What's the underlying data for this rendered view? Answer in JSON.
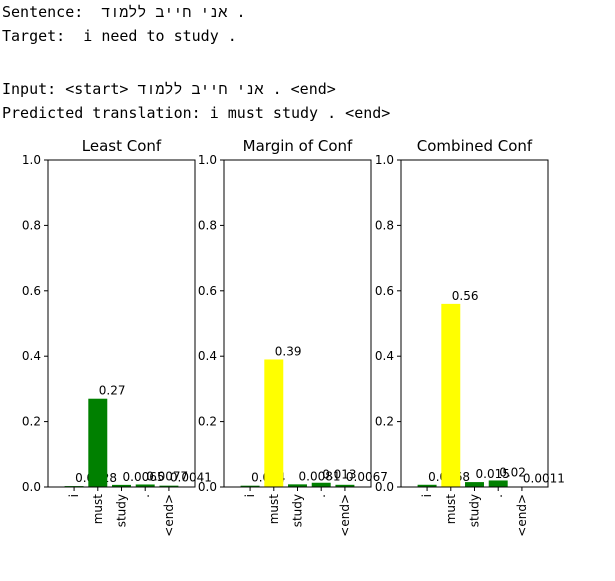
{
  "output": {
    "lines": [
      "Sentence:  אני חייב ללמוד .",
      "Target:  i need to study .",
      "Input: <start> אני חייב ללמוד . <end>",
      "Predicted translation: i must study . <end>"
    ]
  },
  "chart_data": [
    {
      "type": "bar",
      "title": "Least Conf",
      "categories": [
        "i",
        "must",
        "study",
        ".",
        "<end>"
      ],
      "values": [
        0.0028,
        0.27,
        0.0065,
        0.0077,
        0.0041
      ],
      "colors": [
        "green",
        "green",
        "green",
        "green",
        "green"
      ],
      "ylim": [
        0,
        1
      ],
      "yticks": [
        {
          "value": 0,
          "label": "0.0"
        },
        0.2,
        0.4,
        0.6,
        0.8,
        {
          "value": 1,
          "label": "1.0"
        }
      ]
    },
    {
      "type": "bar",
      "title": "Margin of Conf",
      "categories": [
        "i",
        "must",
        "study",
        ".",
        "<end>"
      ],
      "values": [
        0.004,
        0.39,
        0.0081,
        0.013,
        0.0067
      ],
      "colors": [
        "green",
        "yellow",
        "green",
        "green",
        "green"
      ],
      "ylim": [
        0,
        1
      ],
      "yticks": [
        {
          "value": 0,
          "label": "0.0"
        },
        0.2,
        0.4,
        0.6,
        0.8,
        {
          "value": 1,
          "label": "1.0"
        }
      ]
    },
    {
      "type": "bar",
      "title": "Combined Conf",
      "categories": [
        "i",
        "must",
        "study",
        ".",
        "<end>"
      ],
      "values": [
        0.0068,
        0.56,
        0.015,
        0.02,
        0.0011
      ],
      "colors": [
        "green",
        "yellow",
        "green",
        "green",
        "green"
      ],
      "ylim": [
        0,
        1
      ],
      "yticks": [
        {
          "value": 0,
          "label": "0.0"
        },
        0.2,
        0.4,
        0.6,
        0.8,
        {
          "value": 1,
          "label": "1.0"
        }
      ]
    }
  ]
}
